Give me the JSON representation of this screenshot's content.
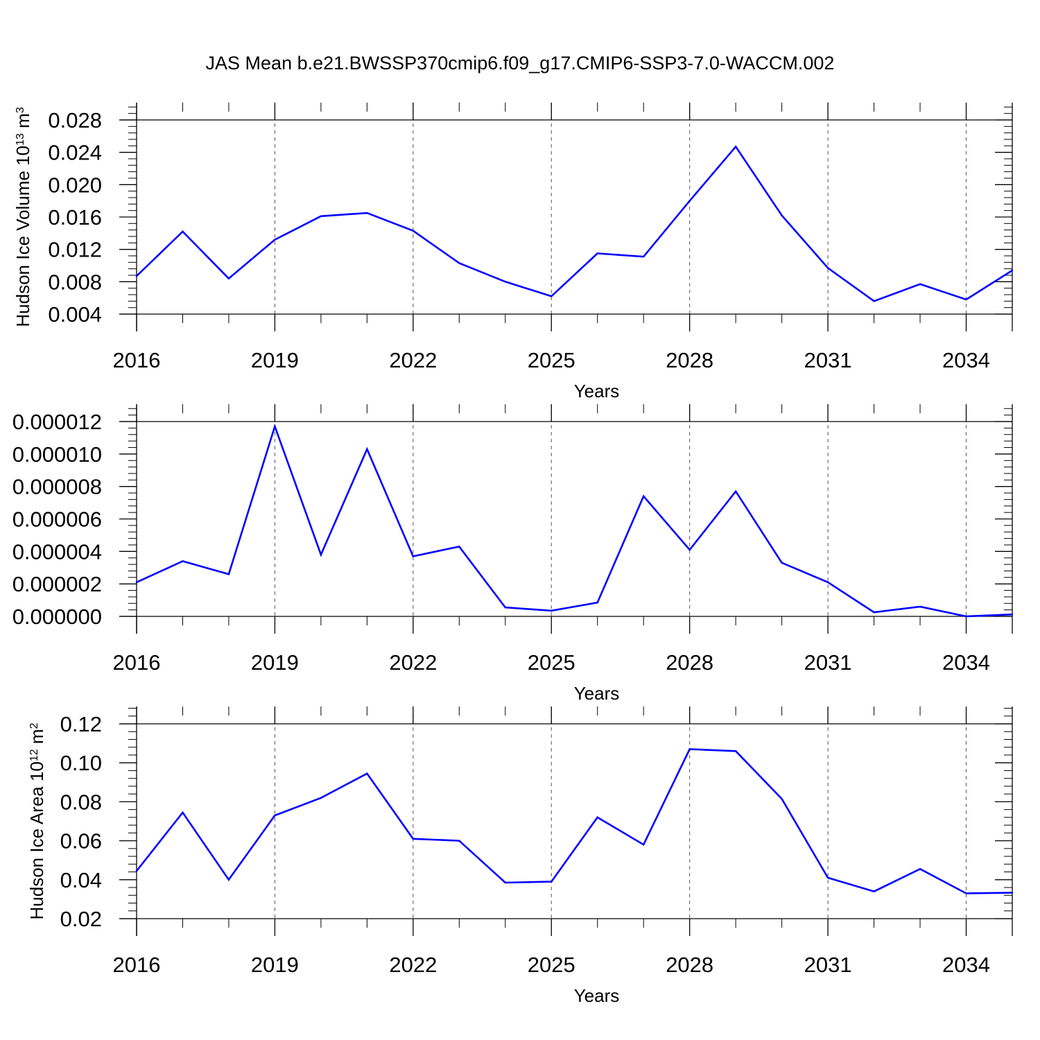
{
  "title": "JAS Mean b.e21.BWSSP370cmip6.f09_g17.CMIP6-SSP3-7.0-WACCM.002",
  "colors": {
    "series": "#0000ff",
    "axes": "#000000",
    "grid": "#555555"
  },
  "chart_data": [
    {
      "type": "line",
      "xlabel": "Years",
      "ylabel_prefix": "Hudson Ice Volume 10",
      "ylabel_sup1": "13",
      "ylabel_mid": " m",
      "ylabel_sup2": "3",
      "xlim": [
        2016,
        2035
      ],
      "ylim": [
        0.004,
        0.028
      ],
      "xticks": [
        2016,
        2019,
        2022,
        2025,
        2028,
        2031,
        2034
      ],
      "xtick_labels": [
        "2016",
        "2019",
        "2022",
        "2025",
        "2028",
        "2031",
        "2034"
      ],
      "yticks": [
        0.004,
        0.008,
        0.012,
        0.016,
        0.02,
        0.024,
        0.028
      ],
      "ytick_labels": [
        "0.004",
        "0.008",
        "0.012",
        "0.016",
        "0.020",
        "0.024",
        "0.028"
      ],
      "grid": "vertical dashed at major x ticks",
      "x": [
        2016,
        2017,
        2018,
        2019,
        2020,
        2021,
        2022,
        2023,
        2024,
        2025,
        2026,
        2027,
        2028,
        2029,
        2030,
        2031,
        2032,
        2033,
        2034,
        2035
      ],
      "y": [
        0.0087,
        0.0142,
        0.0084,
        0.0132,
        0.0161,
        0.0165,
        0.0143,
        0.0103,
        0.008,
        0.0062,
        0.0115,
        0.0111,
        0.018,
        0.0247,
        0.0162,
        0.0097,
        0.0056,
        0.0077,
        0.0058,
        0.0094
      ]
    },
    {
      "type": "line",
      "xlabel": "Years",
      "ylabel_prefix": "",
      "ylabel_sup1": "",
      "ylabel_mid": "",
      "ylabel_sup2": "",
      "xlim": [
        2016,
        2035
      ],
      "ylim": [
        0.0,
        1.2e-05
      ],
      "xticks": [
        2016,
        2019,
        2022,
        2025,
        2028,
        2031,
        2034
      ],
      "xtick_labels": [
        "2016",
        "2019",
        "2022",
        "2025",
        "2028",
        "2031",
        "2034"
      ],
      "yticks": [
        0.0,
        2e-06,
        4e-06,
        6e-06,
        8e-06,
        1e-05,
        1.2e-05
      ],
      "ytick_labels": [
        "0.000000",
        "0.000002",
        "0.000004",
        "0.000006",
        "0.000008",
        "0.000010",
        "0.000012"
      ],
      "grid": "vertical dashed at major x ticks",
      "x": [
        2016,
        2017,
        2018,
        2019,
        2020,
        2021,
        2022,
        2023,
        2024,
        2025,
        2026,
        2027,
        2028,
        2029,
        2030,
        2031,
        2032,
        2033,
        2034,
        2035
      ],
      "y": [
        2.1e-06,
        3.4e-06,
        2.6e-06,
        1.17e-05,
        3.8e-06,
        1.03e-05,
        3.7e-06,
        4.3e-06,
        5.5e-07,
        3.5e-07,
        8.5e-07,
        7.4e-06,
        4.1e-06,
        7.7e-06,
        3.3e-06,
        2.1e-06,
        2.5e-07,
        6e-07,
        0.0,
        1.2e-07
      ]
    },
    {
      "type": "line",
      "xlabel": "Years",
      "ylabel_prefix": "Hudson Ice Area 10",
      "ylabel_sup1": "12",
      "ylabel_mid": " m",
      "ylabel_sup2": "2",
      "xlim": [
        2016,
        2035
      ],
      "ylim": [
        0.02,
        0.12
      ],
      "xticks": [
        2016,
        2019,
        2022,
        2025,
        2028,
        2031,
        2034
      ],
      "xtick_labels": [
        "2016",
        "2019",
        "2022",
        "2025",
        "2028",
        "2031",
        "2034"
      ],
      "yticks": [
        0.02,
        0.04,
        0.06,
        0.08,
        0.1,
        0.12
      ],
      "ytick_labels": [
        "0.02",
        "0.04",
        "0.06",
        "0.08",
        "0.10",
        "0.12"
      ],
      "grid": "vertical dashed at major x ticks",
      "x": [
        2016,
        2017,
        2018,
        2019,
        2020,
        2021,
        2022,
        2023,
        2024,
        2025,
        2026,
        2027,
        2028,
        2029,
        2030,
        2031,
        2032,
        2033,
        2034,
        2035
      ],
      "y": [
        0.0445,
        0.0745,
        0.04,
        0.073,
        0.082,
        0.0945,
        0.061,
        0.06,
        0.0385,
        0.039,
        0.072,
        0.058,
        0.107,
        0.106,
        0.0815,
        0.041,
        0.034,
        0.0455,
        0.033,
        0.0333
      ]
    }
  ]
}
